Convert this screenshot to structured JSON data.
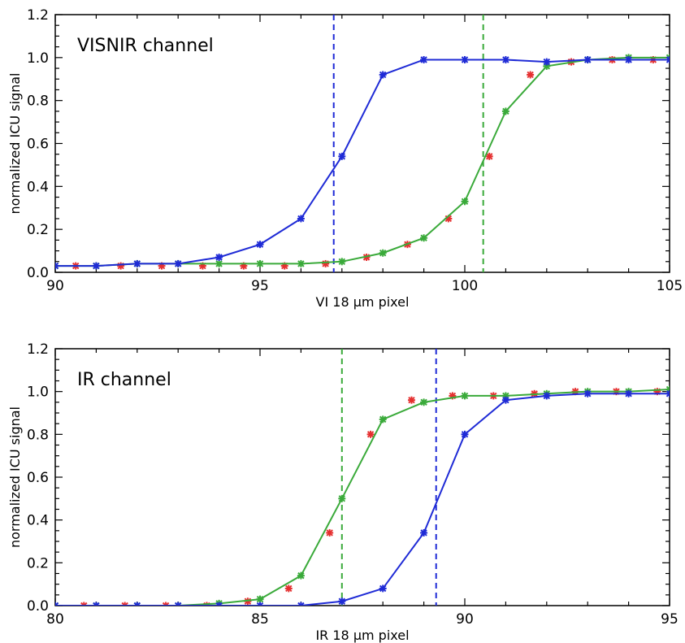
{
  "colors": {
    "blue": "#1f2bd6",
    "green": "#3aaa3a",
    "red": "#e53030"
  },
  "chart_data": [
    {
      "type": "line",
      "title": "",
      "annotation": "VISNIR channel",
      "xlabel": "VI 18 μm pixel",
      "ylabel": "normalized ICU signal",
      "xlim": [
        90,
        105
      ],
      "ylim": [
        0.0,
        1.2
      ],
      "xticks": [
        90,
        95,
        100,
        105
      ],
      "yticks": [
        0.0,
        0.2,
        0.4,
        0.6,
        0.8,
        1.0,
        1.2
      ],
      "yticks_text": [
        "0.0",
        "0.2",
        "0.4",
        "0.6",
        "0.8",
        "1.0",
        "1.2"
      ],
      "series": [
        {
          "color": "blue",
          "line": true,
          "marker": "star",
          "x": [
            90,
            91,
            92,
            93,
            94,
            95,
            96,
            97,
            98,
            99,
            100,
            101,
            102,
            103,
            104,
            105
          ],
          "y": [
            0.03,
            0.03,
            0.04,
            0.04,
            0.07,
            0.13,
            0.25,
            0.54,
            0.92,
            0.99,
            0.99,
            0.99,
            0.98,
            0.99,
            0.99,
            0.99
          ]
        },
        {
          "color": "green",
          "line": true,
          "marker": "star",
          "x": [
            90,
            91,
            92,
            93,
            94,
            95,
            96,
            97,
            98,
            99,
            100,
            101,
            102,
            103,
            104,
            105
          ],
          "y": [
            0.03,
            0.03,
            0.04,
            0.04,
            0.04,
            0.04,
            0.04,
            0.05,
            0.09,
            0.16,
            0.33,
            0.75,
            0.96,
            0.99,
            1.0,
            1.0
          ]
        },
        {
          "color": "red",
          "line": false,
          "marker": "star",
          "x": [
            90.5,
            91.6,
            92.6,
            93.6,
            94.6,
            95.6,
            96.6,
            97.6,
            98.6,
            99.6,
            100.6,
            101.6,
            102.6,
            103.6,
            104.6
          ],
          "y": [
            0.03,
            0.03,
            0.03,
            0.03,
            0.03,
            0.03,
            0.04,
            0.07,
            0.13,
            0.25,
            0.54,
            0.92,
            0.98,
            0.99,
            0.99
          ]
        }
      ],
      "vlines": [
        {
          "x": 96.8,
          "color": "blue"
        },
        {
          "x": 100.45,
          "color": "green"
        }
      ]
    },
    {
      "type": "line",
      "title": "",
      "annotation": "IR channel",
      "xlabel": "IR 18 μm pixel",
      "ylabel": "normalized ICU signal",
      "xlim": [
        80,
        95
      ],
      "ylim": [
        0.0,
        1.2
      ],
      "xticks": [
        80,
        85,
        90,
        95
      ],
      "yticks": [
        0.0,
        0.2,
        0.4,
        0.6,
        0.8,
        1.0,
        1.2
      ],
      "yticks_text": [
        "0.0",
        "0.2",
        "0.4",
        "0.6",
        "0.8",
        "1.0",
        "1.2"
      ],
      "series": [
        {
          "color": "blue",
          "line": true,
          "marker": "star",
          "x": [
            80,
            81,
            82,
            83,
            84,
            85,
            86,
            87,
            88,
            89,
            90,
            91,
            92,
            93,
            94,
            95
          ],
          "y": [
            0.0,
            0.0,
            0.0,
            0.0,
            0.0,
            0.0,
            0.0,
            0.02,
            0.08,
            0.34,
            0.8,
            0.96,
            0.98,
            0.99,
            0.99,
            0.99
          ]
        },
        {
          "color": "green",
          "line": true,
          "marker": "star",
          "x": [
            80,
            81,
            82,
            83,
            84,
            85,
            86,
            87,
            88,
            89,
            90,
            91,
            92,
            93,
            94,
            95
          ],
          "y": [
            0.0,
            0.0,
            0.0,
            0.0,
            0.01,
            0.03,
            0.14,
            0.5,
            0.87,
            0.95,
            0.98,
            0.98,
            0.99,
            1.0,
            1.0,
            1.01
          ]
        },
        {
          "color": "red",
          "line": false,
          "marker": "star",
          "x": [
            80.7,
            81.7,
            82.7,
            83.7,
            84.7,
            85.7,
            86.7,
            87.7,
            88.7,
            89.7,
            90.7,
            91.7,
            92.7,
            93.7,
            94.7
          ],
          "y": [
            0.0,
            0.0,
            0.0,
            0.0,
            0.02,
            0.08,
            0.34,
            0.8,
            0.96,
            0.98,
            0.98,
            0.99,
            1.0,
            1.0,
            1.0
          ]
        }
      ],
      "vlines": [
        {
          "x": 87.0,
          "color": "green"
        },
        {
          "x": 89.3,
          "color": "blue"
        }
      ]
    }
  ]
}
